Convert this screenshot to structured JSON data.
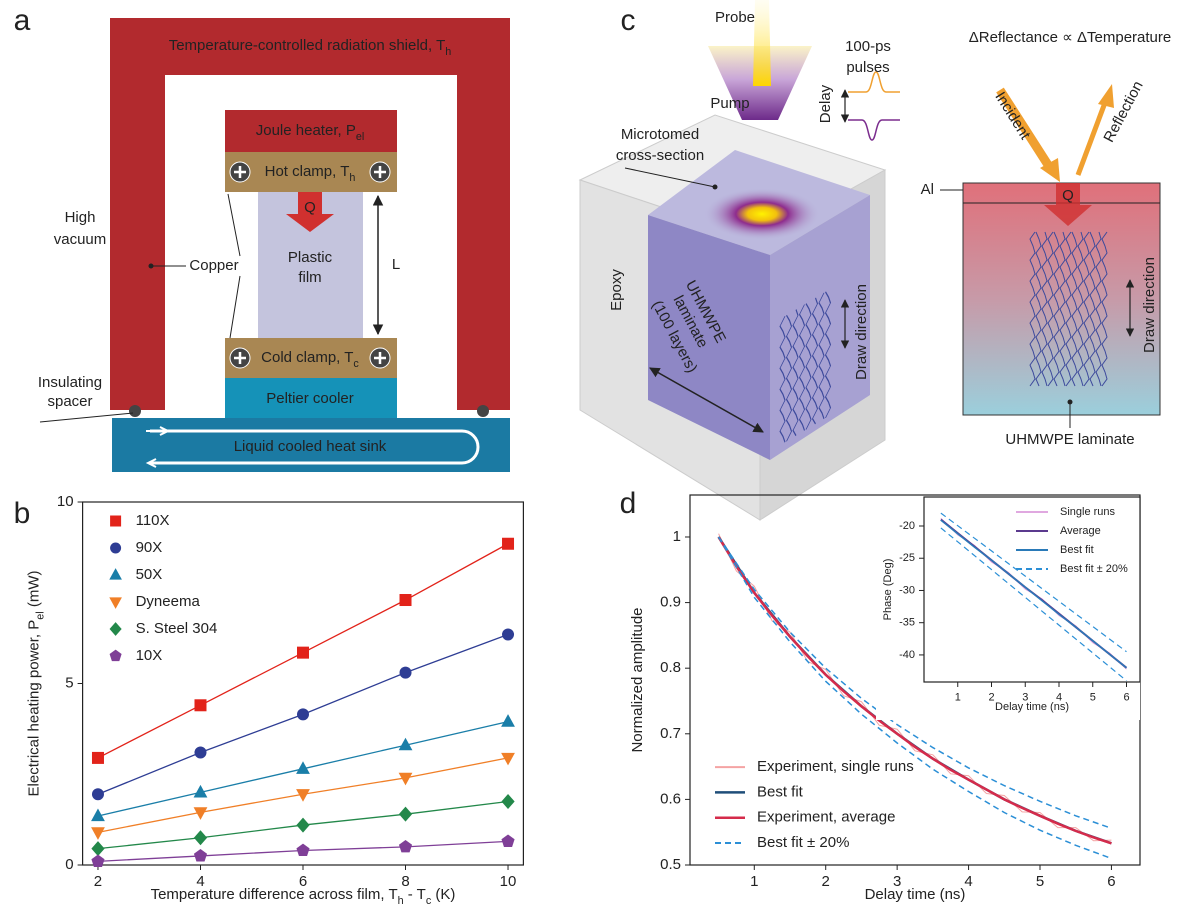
{
  "panel_labels": [
    "a",
    "b",
    "c",
    "d"
  ],
  "diagram_a": {
    "shield": [
      "Temperature-controlled radiation shield, T",
      {
        "sub": "h"
      }
    ],
    "heater": [
      "Joule heater, P",
      {
        "sub": "el"
      }
    ],
    "hot_clamp": [
      "Hot clamp, T",
      {
        "sub": "h"
      }
    ],
    "heat_flow": "Q",
    "film": [
      "Plastic",
      "film"
    ],
    "length": "L",
    "cold_clamp": [
      "Cold clamp, T",
      {
        "sub": "c"
      }
    ],
    "peltier": "Peltier cooler",
    "heat_sink": "Liquid cooled heat sink",
    "vacuum": [
      "High",
      "vacuum"
    ],
    "copper": "Copper",
    "spacer": [
      "Insulating",
      "spacer"
    ]
  },
  "diagram_c": {
    "probe": "Probe",
    "pump": "Pump",
    "pulses": [
      "100-ps",
      "pulses"
    ],
    "delay": "Delay",
    "cross_section": [
      "Microtomed",
      "cross-section"
    ],
    "epoxy": "Epoxy",
    "laminate": [
      "UHMWPE",
      "laminate",
      "(100 layers)"
    ],
    "draw_direction": "Draw direction",
    "relation": "ΔReflectance ∝ ΔTemperature",
    "incident": "Incident",
    "reflection": "Reflection",
    "al": "Al",
    "heat_flow": "Q",
    "draw_direction_2": "Draw direction",
    "laminate_2": "UHMWPE laminate"
  },
  "chart_data": [
    {
      "type": "scatter",
      "xlabel": [
        "Temperature difference across film, T",
        {
          "sub": "h"
        },
        " - T",
        {
          "sub": "c"
        },
        " (K)"
      ],
      "ylabel": [
        "Electrical heating power, P",
        {
          "sub": "el"
        },
        " (mW)"
      ],
      "x": [
        2,
        4,
        6,
        8,
        10
      ],
      "xlim": [
        1.7,
        10.3
      ],
      "ylim": [
        0,
        10
      ],
      "xticks": [
        2,
        4,
        6,
        8,
        10
      ],
      "yticks": [
        0,
        5,
        10
      ],
      "legend": "upper left",
      "series": [
        {
          "name": "110X",
          "color": "#e2231a",
          "marker": "square",
          "values": [
            2.95,
            4.4,
            5.85,
            7.3,
            8.85
          ]
        },
        {
          "name": "90X",
          "color": "#2e3d94",
          "marker": "circle",
          "values": [
            1.95,
            3.1,
            4.15,
            5.3,
            6.35
          ]
        },
        {
          "name": "50X",
          "color": "#1a7ea8",
          "marker": "triangle-up",
          "values": [
            1.35,
            2.0,
            2.65,
            3.3,
            3.95
          ]
        },
        {
          "name": "Dyneema",
          "color": "#f07f27",
          "marker": "triangle-down",
          "values": [
            0.9,
            1.45,
            1.95,
            2.4,
            2.95
          ]
        },
        {
          "name": "S. Steel 304",
          "color": "#23884a",
          "marker": "diamond",
          "values": [
            0.45,
            0.75,
            1.1,
            1.4,
            1.75
          ]
        },
        {
          "name": "10X",
          "color": "#7f3f97",
          "marker": "pentagon",
          "values": [
            0.1,
            0.25,
            0.4,
            0.5,
            0.65
          ]
        }
      ]
    },
    {
      "type": "line",
      "xlabel": "Delay time (ns)",
      "ylabel": "Normalized amplitude",
      "xlim": [
        0.1,
        6.4
      ],
      "ylim": [
        0.5,
        1.064
      ],
      "xticks": [
        1,
        2,
        3,
        4,
        5,
        6
      ],
      "yticks": [
        0.5,
        0.6,
        0.7,
        0.8,
        0.9,
        1
      ],
      "legend": "lower left",
      "series": [
        {
          "name": "Experiment, single runs",
          "color": "#f4a3a3",
          "linewidth": 1,
          "x": [
            0.5,
            0.75,
            1,
            1.25,
            1.5,
            1.75,
            2,
            2.25,
            2.5,
            2.75,
            3,
            3.25,
            3.5,
            3.75,
            4,
            4.25,
            4.5,
            4.75,
            5,
            5.25,
            5.5,
            5.75,
            6
          ],
          "values": [
            1.005,
            0.948,
            0.925,
            0.872,
            0.855,
            0.81,
            0.798,
            0.758,
            0.749,
            0.713,
            0.707,
            0.674,
            0.668,
            0.639,
            0.636,
            0.609,
            0.606,
            0.581,
            0.58,
            0.557,
            0.557,
            0.537,
            0.538
          ]
        },
        {
          "name": "Best fit",
          "color": "#1f4e79",
          "linewidth": 2.5,
          "x": [
            0.5,
            1,
            1.5,
            2,
            2.5,
            3,
            3.5,
            4,
            4.5,
            5,
            5.5,
            6
          ],
          "values": [
            1.0,
            0.915,
            0.848,
            0.79,
            0.742,
            0.7,
            0.662,
            0.63,
            0.6,
            0.575,
            0.552,
            0.533
          ]
        },
        {
          "name": "Experiment, average",
          "color": "#d52b4b",
          "linewidth": 2.5,
          "x": [
            0.5,
            0.75,
            1,
            1.25,
            1.5,
            1.75,
            2,
            2.25,
            2.5,
            2.75,
            3,
            3.25,
            3.5,
            3.75,
            4,
            4.25,
            4.5,
            4.75,
            5,
            5.25,
            5.5,
            5.75,
            6
          ],
          "values": [
            1.0,
            0.955,
            0.915,
            0.88,
            0.848,
            0.818,
            0.79,
            0.765,
            0.742,
            0.72,
            0.7,
            0.68,
            0.662,
            0.645,
            0.63,
            0.615,
            0.6,
            0.587,
            0.575,
            0.563,
            0.552,
            0.542,
            0.533
          ]
        },
        {
          "name": "Best fit ± 20%",
          "color": "#2b8fd6",
          "linewidth": 1.5,
          "linestyle": "dashed",
          "x": [
            0.5,
            1,
            1.5,
            2,
            2.5,
            3,
            3.5,
            4,
            4.5,
            5,
            5.5,
            6
          ],
          "values": [
            1.0,
            0.92,
            0.855,
            0.8,
            0.754,
            0.714,
            0.679,
            0.648,
            0.621,
            0.597,
            0.575,
            0.556
          ]
        },
        {
          "color": "#2b8fd6",
          "linewidth": 1.5,
          "linestyle": "dashed",
          "x": [
            0.5,
            1,
            1.5,
            2,
            2.5,
            3,
            3.5,
            4,
            4.5,
            5,
            5.5,
            6
          ],
          "values": [
            1.0,
            0.908,
            0.84,
            0.78,
            0.73,
            0.686,
            0.646,
            0.612,
            0.58,
            0.553,
            0.53,
            0.51
          ]
        }
      ]
    },
    {
      "type": "line",
      "xlabel": "Delay time (ns)",
      "ylabel": "Phase (Deg)",
      "xlim": [
        0,
        6.4
      ],
      "ylim": [
        -44.2,
        -15.5
      ],
      "xticks": [
        1,
        2,
        3,
        4,
        5,
        6
      ],
      "yticks": [
        -20,
        -25,
        -30,
        -35,
        -40
      ],
      "legend": "upper right",
      "series": [
        {
          "name": "Single runs",
          "color": "#e0a8e0",
          "linewidth": 1,
          "x": [
            0.5,
            1,
            1.5,
            2,
            2.5,
            3,
            3.5,
            4,
            4.5,
            5,
            5.5,
            6
          ],
          "values": [
            -18.8,
            -21.4,
            -23.0,
            -25.6,
            -27.2,
            -29.8,
            -31.3,
            -33.9,
            -35.5,
            -38.1,
            -39.7,
            -42.2
          ]
        },
        {
          "name": "Average",
          "color": "#5b3a8e",
          "linewidth": 2,
          "x": [
            0.5,
            1,
            1.5,
            2,
            2.5,
            3,
            3.5,
            4,
            4.5,
            5,
            5.5,
            6
          ],
          "values": [
            -19,
            -21.1,
            -23.2,
            -25.3,
            -27.4,
            -29.5,
            -31.5,
            -33.6,
            -35.7,
            -37.8,
            -39.9,
            -42
          ]
        },
        {
          "name": "Best fit",
          "color": "#2a7ab8",
          "linewidth": 1.5,
          "x": [
            0.5,
            1,
            1.5,
            2,
            2.5,
            3,
            3.5,
            4,
            4.5,
            5,
            5.5,
            6
          ],
          "values": [
            -19.1,
            -21.2,
            -23.3,
            -25.3,
            -27.4,
            -29.5,
            -31.6,
            -33.7,
            -35.7,
            -37.8,
            -39.9,
            -42
          ]
        },
        {
          "name": "Best fit ± 20%",
          "color": "#2b8fd6",
          "linewidth": 1.2,
          "linestyle": "dashed",
          "x": [
            0.5,
            1,
            1.5,
            2,
            2.5,
            3,
            3.5,
            4,
            4.5,
            5,
            5.5,
            6
          ],
          "values": [
            -18,
            -19.95,
            -21.91,
            -23.86,
            -25.82,
            -27.77,
            -29.73,
            -31.68,
            -33.64,
            -35.59,
            -37.55,
            -39.5
          ]
        },
        {
          "color": "#2b8fd6",
          "linewidth": 1.2,
          "linestyle": "dashed",
          "x": [
            0.5,
            1,
            1.5,
            2,
            2.5,
            3,
            3.5,
            4,
            4.5,
            5,
            5.5,
            6
          ],
          "values": [
            -20.3,
            -22.45,
            -24.61,
            -26.76,
            -28.92,
            -31.07,
            -33.23,
            -35.38,
            -37.54,
            -39.69,
            -41.85,
            -44
          ]
        }
      ]
    }
  ]
}
